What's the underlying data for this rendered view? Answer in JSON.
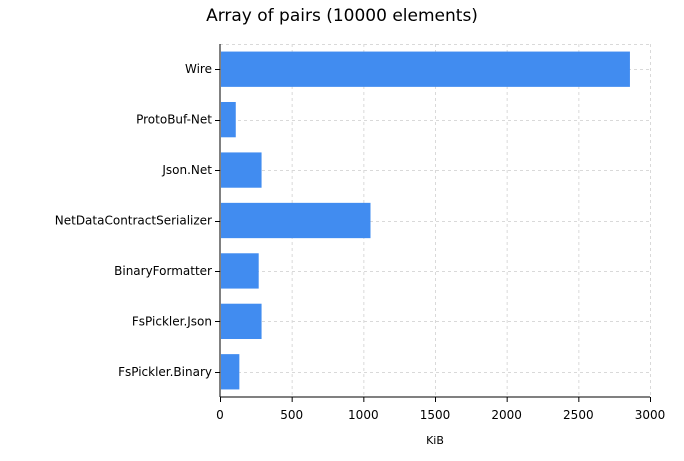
{
  "chart_data": {
    "type": "bar",
    "orientation": "horizontal",
    "title": "Array of pairs (10000 elements)",
    "xlabel": "KiB",
    "ylabel": "",
    "categories": [
      "Wire",
      "ProtoBuf-Net",
      "Json.Net",
      "NetDataContractSerializer",
      "BinaryFormatter",
      "FsPickler.Json",
      "FsPickler.Binary"
    ],
    "values": [
      2860,
      110,
      290,
      1050,
      270,
      290,
      135
    ],
    "xlim": [
      0,
      3000
    ],
    "xticks": [
      0,
      500,
      1000,
      1500,
      2000,
      2500,
      3000
    ],
    "grid": true,
    "bar_color": "#418cf0",
    "grid_color": "#d9d9d9"
  }
}
